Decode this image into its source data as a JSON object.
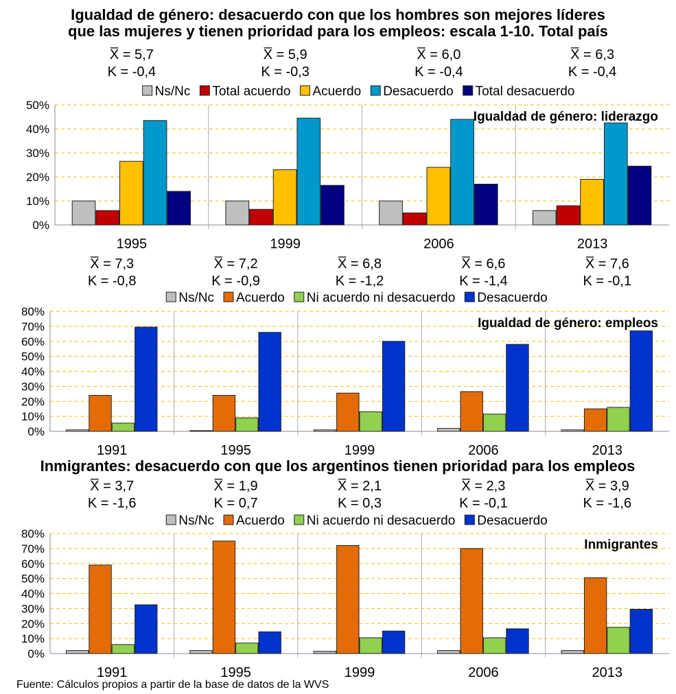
{
  "header": {
    "title_line1": "Igualdad de género: desacuerdo con que los hombres son mejores líderes",
    "title_line2": "que las mujeres y tienen prioridad para los empleos: escala 1-10. Total país"
  },
  "source": "Fuente: Cálculos propios a partir de la base de datos de la WVS",
  "colors": {
    "nsnc": "#bfbfbf",
    "total_acuerdo": "#c00000",
    "acuerdo_yellow": "#ffc000",
    "desacuerdo_light": "#0099cc",
    "total_desacuerdo": "#000080",
    "acuerdo_orange": "#e36c09",
    "ni_green": "#92d050",
    "desacuerdo_blue": "#0033cc",
    "grid": "#f0c000"
  },
  "chart_data": [
    {
      "type": "bar",
      "title": "Igualdad de género: liderazgo",
      "ylim": [
        0,
        50
      ],
      "yticks": [
        "0%",
        "10%",
        "20%",
        "30%",
        "40%",
        "50%"
      ],
      "grid": true,
      "legend_position": "top",
      "categories": [
        "1995",
        "1999",
        "2006",
        "2013"
      ],
      "stats": [
        {
          "mean": "X̅ = 5,7",
          "k": "K = -0,4"
        },
        {
          "mean": "X̅ = 5,9",
          "k": "K = -0,3"
        },
        {
          "mean": "X̅ = 6,0",
          "k": "K = -0,4"
        },
        {
          "mean": "X̅ = 6,3",
          "k": "K = -0,4"
        }
      ],
      "series": [
        {
          "name": "Ns/Nc",
          "color": "#bfbfbf",
          "values": [
            10,
            10,
            10,
            6
          ]
        },
        {
          "name": "Total acuerdo",
          "color": "#c00000",
          "values": [
            6,
            6.5,
            5,
            8
          ]
        },
        {
          "name": "Acuerdo",
          "color": "#ffc000",
          "values": [
            26.5,
            23,
            24,
            19
          ]
        },
        {
          "name": "Desacuerdo",
          "color": "#0099cc",
          "values": [
            43.5,
            44.5,
            44,
            42.5
          ]
        },
        {
          "name": "Total desacuerdo",
          "color": "#000080",
          "values": [
            14,
            16.5,
            17,
            24.5
          ]
        }
      ]
    },
    {
      "type": "bar",
      "title": "Igualdad de género: empleos",
      "ylim": [
        0,
        80
      ],
      "yticks": [
        "0%",
        "10%",
        "20%",
        "30%",
        "40%",
        "50%",
        "60%",
        "70%",
        "80%"
      ],
      "grid": true,
      "legend_position": "top",
      "categories": [
        "1991",
        "1995",
        "1999",
        "2006",
        "2013"
      ],
      "stats": [
        {
          "mean": "X̅ = 7,3",
          "k": "K = -0,8"
        },
        {
          "mean": "X̅ = 7,2",
          "k": "K = -0,9"
        },
        {
          "mean": "X̅ = 6,8",
          "k": "K = -1,2"
        },
        {
          "mean": "X̅ = 6,6",
          "k": "K = -1,4"
        },
        {
          "mean": "X̅ = 7,6",
          "k": "K = -0,1"
        }
      ],
      "series": [
        {
          "name": "Ns/Nc",
          "color": "#bfbfbf",
          "values": [
            1,
            0.5,
            1,
            2,
            1
          ]
        },
        {
          "name": "Acuerdo",
          "color": "#e36c09",
          "values": [
            24,
            24,
            25.5,
            26.5,
            15
          ]
        },
        {
          "name": "Ni acuerdo ni desacuerdo",
          "color": "#92d050",
          "values": [
            5.5,
            9,
            13,
            11.5,
            16
          ]
        },
        {
          "name": "Desacuerdo",
          "color": "#0033cc",
          "values": [
            69.5,
            66,
            60,
            58,
            67
          ]
        }
      ]
    },
    {
      "type": "bar",
      "title": "Inmigrantes",
      "heading": "Inmigrantes: desacuerdo con que los argentinos tienen prioridad para los empleos",
      "ylim": [
        0,
        80
      ],
      "yticks": [
        "0%",
        "10%",
        "20%",
        "30%",
        "40%",
        "50%",
        "60%",
        "70%",
        "80%"
      ],
      "grid": true,
      "legend_position": "top",
      "categories": [
        "1991",
        "1995",
        "1999",
        "2006",
        "2013"
      ],
      "stats": [
        {
          "mean": "X̅ = 3,7",
          "k": "K = -1,6"
        },
        {
          "mean": "X̅ = 1,9",
          "k": "K = 0,7"
        },
        {
          "mean": "X̅ = 2,1",
          "k": "K = 0,3"
        },
        {
          "mean": "X̅ = 2,3",
          "k": "K = -0,1"
        },
        {
          "mean": "X̅ = 3,9",
          "k": "K = -1,6"
        }
      ],
      "series": [
        {
          "name": "Ns/Nc",
          "color": "#bfbfbf",
          "values": [
            2,
            2,
            1.5,
            2,
            2
          ]
        },
        {
          "name": "Acuerdo",
          "color": "#e36c09",
          "values": [
            59,
            75,
            72,
            70,
            50.5
          ]
        },
        {
          "name": "Ni acuerdo ni desacuerdo",
          "color": "#92d050",
          "values": [
            6,
            7,
            10.5,
            10.5,
            17.5
          ]
        },
        {
          "name": "Desacuerdo",
          "color": "#0033cc",
          "values": [
            32.5,
            14.5,
            15,
            16.5,
            29.5
          ]
        }
      ]
    }
  ]
}
